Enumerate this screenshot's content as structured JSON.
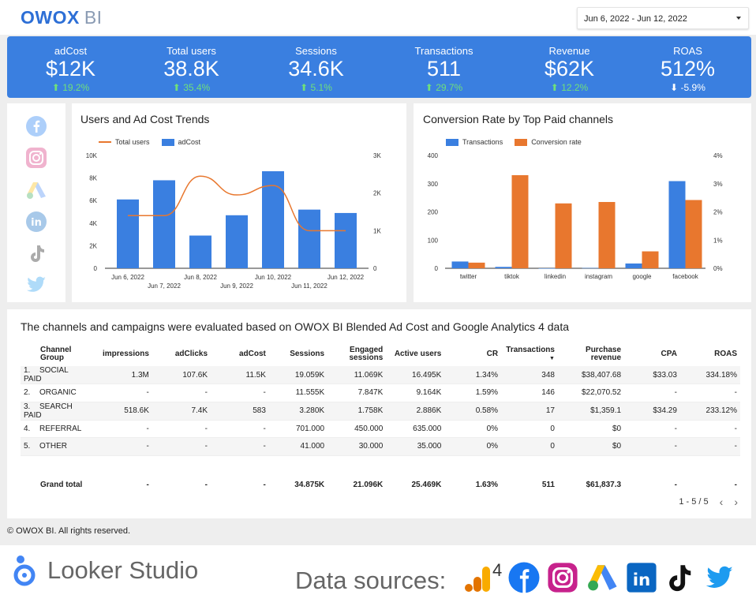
{
  "header": {
    "logo_owox": "OWOX",
    "logo_bi": "BI",
    "date_range": "Jun 6, 2022 - Jun 12, 2022"
  },
  "kpis": [
    {
      "label": "adCost",
      "value": "$12K",
      "delta": "19.2%",
      "direction": "up"
    },
    {
      "label": "Total users",
      "value": "38.8K",
      "delta": "35.4%",
      "direction": "up"
    },
    {
      "label": "Sessions",
      "value": "34.6K",
      "delta": "5.1%",
      "direction": "up"
    },
    {
      "label": "Transactions",
      "value": "511",
      "delta": "29.7%",
      "direction": "up"
    },
    {
      "label": "Revenue",
      "value": "$62K",
      "delta": "12.2%",
      "direction": "up"
    },
    {
      "label": "ROAS",
      "value": "512%",
      "delta": "-5.9%",
      "direction": "down"
    }
  ],
  "social_icons": [
    "facebook-icon",
    "instagram-icon",
    "google-ads-icon",
    "linkedin-icon",
    "tiktok-icon",
    "twitter-icon"
  ],
  "chart_data": [
    {
      "type": "bar",
      "title": "Users and Ad Cost Trends",
      "categories": [
        "Jun 6, 2022",
        "Jun 7, 2022",
        "Jun 8, 2022",
        "Jun 9, 2022",
        "Jun 10, 2022",
        "Jun 11, 2022",
        "Jun 12, 2022"
      ],
      "series": [
        {
          "name": "Total users",
          "type": "line",
          "axis": "right",
          "color": "#e8772e",
          "values": [
            1400,
            1400,
            2450,
            1950,
            2200,
            1000,
            1000
          ]
        },
        {
          "name": "adCost",
          "type": "bar",
          "axis": "left",
          "color": "#3a7fe0",
          "values": [
            6100,
            7800,
            2900,
            4700,
            8600,
            5200,
            4900
          ]
        }
      ],
      "y_left_ticks": [
        "0",
        "2K",
        "4K",
        "6K",
        "8K",
        "10K"
      ],
      "y_right_ticks": [
        "0",
        "1K",
        "2K",
        "3K"
      ],
      "ylim_left": [
        0,
        10000
      ],
      "ylim_right": [
        0,
        3000
      ],
      "legend": "top-left"
    },
    {
      "type": "bar",
      "title": "Conversion Rate by Top Paid channels",
      "categories": [
        "twitter",
        "tiktok",
        "linkedin",
        "instagram",
        "google",
        "facebook"
      ],
      "series": [
        {
          "name": "Transactions",
          "axis": "left",
          "color": "#3a7fe0",
          "values": [
            24,
            5,
            0,
            1,
            17,
            309
          ]
        },
        {
          "name": "Conversion rate",
          "axis": "right",
          "color": "#e8772e",
          "values": [
            0.2,
            3.3,
            2.3,
            2.35,
            0.6,
            2.42
          ]
        }
      ],
      "y_left_ticks": [
        "0",
        "100",
        "200",
        "300",
        "400"
      ],
      "y_right_ticks": [
        "0%",
        "1%",
        "2%",
        "3%",
        "4%"
      ],
      "ylim_left": [
        0,
        400
      ],
      "ylim_right": [
        0,
        4
      ],
      "legend": "top-left"
    }
  ],
  "table": {
    "title": "The channels and campaigns were evaluated based on OWOX BI Blended Ad Cost and Google Analytics 4 data",
    "columns": [
      "Channel Group",
      "impressions",
      "adClicks",
      "adCost",
      "Sessions",
      "Engaged sessions",
      "Active users",
      "CR",
      "Transactions",
      "Purchase revenue",
      "CPA",
      "ROAS"
    ],
    "rows": [
      {
        "idx": "1.",
        "cells": [
          "SOCIAL PAID",
          "1.3M",
          "107.6K",
          "11.5K",
          "19.059K",
          "11.069K",
          "16.495K",
          "1.34%",
          "348",
          "$38,407.68",
          "$33.03",
          "334.18%"
        ]
      },
      {
        "idx": "2.",
        "cells": [
          "ORGANIC",
          "-",
          "-",
          "-",
          "11.555K",
          "7.847K",
          "9.164K",
          "1.59%",
          "146",
          "$22,070.52",
          "-",
          "-"
        ]
      },
      {
        "idx": "3.",
        "cells": [
          "SEARCH PAID",
          "518.6K",
          "7.4K",
          "583",
          "3.280K",
          "1.758K",
          "2.886K",
          "0.58%",
          "17",
          "$1,359.1",
          "$34.29",
          "233.12%"
        ]
      },
      {
        "idx": "4.",
        "cells": [
          "REFERRAL",
          "-",
          "-",
          "-",
          "701.000",
          "450.000",
          "635.000",
          "0%",
          "0",
          "$0",
          "-",
          "-"
        ]
      },
      {
        "idx": "5.",
        "cells": [
          "OTHER",
          "-",
          "-",
          "-",
          "41.000",
          "30.000",
          "35.000",
          "0%",
          "0",
          "$0",
          "-",
          "-"
        ]
      }
    ],
    "total": [
      "Grand total",
      "-",
      "-",
      "-",
      "34.875K",
      "21.096K",
      "25.469K",
      "1.63%",
      "511",
      "$61,837.3",
      "-",
      "-"
    ],
    "pagination": "1 - 5 / 5",
    "sort_indicator": "▼"
  },
  "footer": {
    "copyright": "© OWOX BI. All rights reserved.",
    "looker": "Looker Studio",
    "data_sources": "Data sources:",
    "ga4_number": "4"
  }
}
